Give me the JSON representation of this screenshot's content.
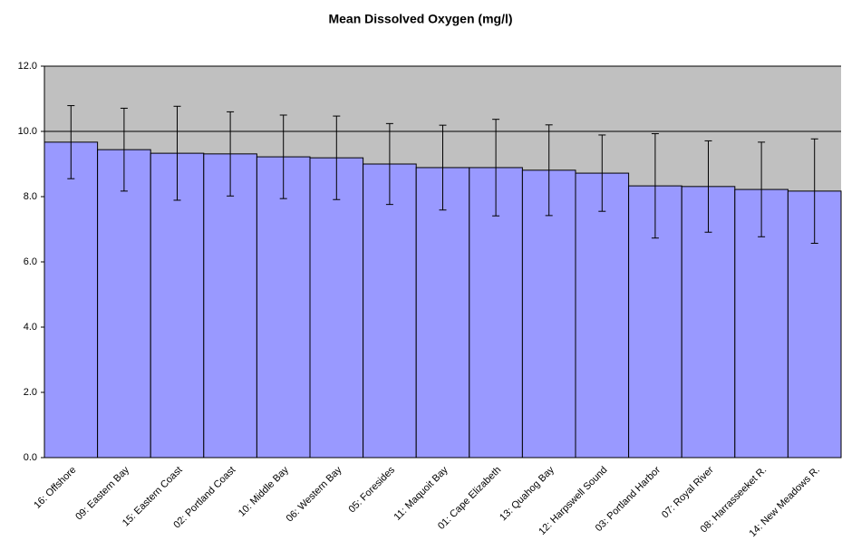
{
  "chart_data": {
    "type": "bar",
    "title": "Mean Dissolved Oxygen (mg/l)",
    "categories": [
      "16: Offshore",
      "09: Eastern Bay",
      "15: Eastern Coast",
      "02: Portland Coast",
      "10: Middle Bay",
      "06: Western Bay",
      "05: Foresides",
      "11: Maquoit Bay",
      "01: Cape Elizabeth",
      "13: Quahog Bay",
      "12: Harpswell Sound",
      "03: Portland Harbor",
      "07: Royal River",
      "08: Harrasseeket R.",
      "14: New Meadows R."
    ],
    "values": [
      9.67,
      9.44,
      9.33,
      9.31,
      9.22,
      9.19,
      9.0,
      8.89,
      8.89,
      8.81,
      8.72,
      8.33,
      8.31,
      8.22,
      8.17
    ],
    "errors": [
      1.12,
      1.27,
      1.44,
      1.29,
      1.28,
      1.28,
      1.24,
      1.3,
      1.48,
      1.39,
      1.17,
      1.6,
      1.4,
      1.45,
      1.6
    ],
    "color": "#9999ff",
    "ylim": [
      0,
      12
    ],
    "yticks": [
      {
        "value": 0,
        "label": "0.0"
      },
      {
        "value": 2,
        "label": "2.0"
      },
      {
        "value": 4,
        "label": "4.0"
      },
      {
        "value": 6,
        "label": "6.0"
      },
      {
        "value": 8,
        "label": "8.0"
      },
      {
        "value": 10,
        "label": "10.0"
      },
      {
        "value": 12,
        "label": "12.0"
      }
    ],
    "grid": true
  }
}
